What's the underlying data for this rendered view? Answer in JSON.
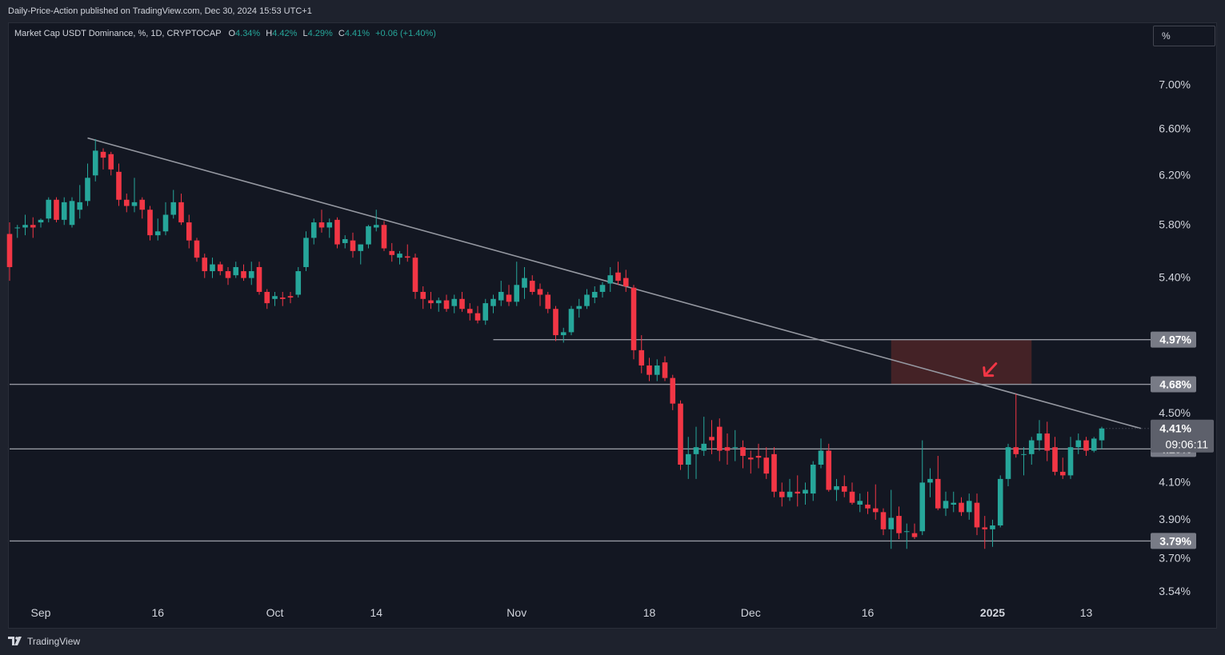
{
  "header": {
    "publisher": "Daily-Price-Action published on TradingView.com, Dec 30, 2024 15:53 UTC+1"
  },
  "legend": {
    "symbol": "Market Cap USDT Dominance, %, 1D, CRYPTOCAP",
    "o_label": "O",
    "o_value": "4.34%",
    "h_label": "H",
    "h_value": "4.42%",
    "l_label": "L",
    "l_value": "4.29%",
    "c_label": "C",
    "c_value": "4.41%",
    "change": "+0.06 (+1.40%)"
  },
  "scale_button": "%",
  "footer": {
    "brand": "TradingView",
    "logo_icon": "tradingview-logo-icon"
  },
  "colors": {
    "background": "#131722",
    "up": "#26a69a",
    "down": "#f23645",
    "trendline": "#9598a1",
    "level": "#9598a1",
    "zone": "#4a2327",
    "arrow": "#f23645",
    "label_bg": "#787b86",
    "price_label_bg": "#5d606b"
  },
  "chart_data": {
    "type": "candlestick",
    "title": "Market Cap USDT Dominance, %, 1D, CRYPTOCAP",
    "x_ticks": [
      "Sep",
      "16",
      "Oct",
      "14",
      "Nov",
      "18",
      "Dec",
      "16",
      "2025",
      "13"
    ],
    "x_ticks_bold": [
      "2025"
    ],
    "y_ticks": [
      "7.00%",
      "6.60%",
      "6.20%",
      "5.80%",
      "5.40%",
      "4.50%",
      "4.10%",
      "3.90%",
      "3.70%",
      "3.54%"
    ],
    "y_tick_values": [
      7.0,
      6.6,
      6.2,
      5.8,
      5.4,
      4.5,
      4.1,
      3.9,
      3.7,
      3.54
    ],
    "yscale": "log",
    "ylim": [
      3.49,
      7.4
    ],
    "grid": false,
    "start_date": "2024-08-28",
    "candles": [
      [
        5.73,
        5.82,
        5.38,
        5.48
      ],
      [
        5.78,
        5.8,
        5.7,
        5.78
      ],
      [
        5.78,
        5.88,
        5.72,
        5.8
      ],
      [
        5.8,
        5.86,
        5.7,
        5.78
      ],
      [
        5.82,
        5.85,
        5.78,
        5.84
      ],
      [
        5.85,
        6.02,
        5.82,
        6.0
      ],
      [
        6.0,
        6.02,
        5.82,
        5.84
      ],
      [
        5.84,
        6.02,
        5.8,
        5.98
      ],
      [
        5.8,
        6.02,
        5.78,
        5.99
      ],
      [
        5.92,
        6.12,
        5.85,
        5.98
      ],
      [
        5.99,
        6.3,
        5.95,
        6.18
      ],
      [
        6.2,
        6.51,
        6.15,
        6.41
      ],
      [
        6.4,
        6.43,
        6.25,
        6.35
      ],
      [
        6.38,
        6.4,
        6.2,
        6.25
      ],
      [
        6.23,
        6.3,
        5.95,
        6.0
      ],
      [
        6.0,
        6.05,
        5.9,
        5.95
      ],
      [
        5.95,
        6.18,
        5.9,
        5.98
      ],
      [
        6.0,
        6.02,
        5.85,
        5.92
      ],
      [
        5.92,
        5.95,
        5.68,
        5.72
      ],
      [
        5.72,
        5.85,
        5.68,
        5.75
      ],
      [
        5.75,
        5.98,
        5.72,
        5.88
      ],
      [
        5.88,
        6.08,
        5.85,
        5.98
      ],
      [
        5.98,
        6.05,
        5.8,
        5.82
      ],
      [
        5.82,
        5.88,
        5.62,
        5.68
      ],
      [
        5.68,
        5.7,
        5.52,
        5.55
      ],
      [
        5.55,
        5.58,
        5.4,
        5.45
      ],
      [
        5.45,
        5.55,
        5.4,
        5.5
      ],
      [
        5.5,
        5.52,
        5.42,
        5.45
      ],
      [
        5.45,
        5.48,
        5.35,
        5.4
      ],
      [
        5.42,
        5.52,
        5.4,
        5.48
      ],
      [
        5.45,
        5.5,
        5.38,
        5.4
      ],
      [
        5.4,
        5.52,
        5.35,
        5.45
      ],
      [
        5.48,
        5.52,
        5.28,
        5.3
      ],
      [
        5.3,
        5.32,
        5.18,
        5.22
      ],
      [
        5.25,
        5.3,
        5.2,
        5.27
      ],
      [
        5.26,
        5.3,
        5.2,
        5.25
      ],
      [
        5.27,
        5.3,
        5.22,
        5.26
      ],
      [
        5.28,
        5.48,
        5.26,
        5.45
      ],
      [
        5.48,
        5.75,
        5.45,
        5.7
      ],
      [
        5.7,
        5.85,
        5.65,
        5.82
      ],
      [
        5.82,
        5.92,
        5.74,
        5.78
      ],
      [
        5.78,
        5.85,
        5.7,
        5.82
      ],
      [
        5.84,
        5.86,
        5.62,
        5.65
      ],
      [
        5.66,
        5.72,
        5.62,
        5.69
      ],
      [
        5.68,
        5.74,
        5.55,
        5.6
      ],
      [
        5.6,
        5.65,
        5.5,
        5.65
      ],
      [
        5.65,
        5.8,
        5.62,
        5.79
      ],
      [
        5.78,
        5.92,
        5.75,
        5.8
      ],
      [
        5.8,
        5.83,
        5.6,
        5.62
      ],
      [
        5.6,
        5.66,
        5.52,
        5.57
      ],
      [
        5.55,
        5.6,
        5.5,
        5.58
      ],
      [
        5.56,
        5.65,
        5.52,
        5.55
      ],
      [
        5.55,
        5.58,
        5.25,
        5.3
      ],
      [
        5.3,
        5.34,
        5.18,
        5.25
      ],
      [
        5.24,
        5.3,
        5.18,
        5.22
      ],
      [
        5.22,
        5.26,
        5.16,
        5.24
      ],
      [
        5.24,
        5.28,
        5.16,
        5.18
      ],
      [
        5.2,
        5.28,
        5.15,
        5.25
      ],
      [
        5.25,
        5.3,
        5.16,
        5.18
      ],
      [
        5.18,
        5.22,
        5.1,
        5.15
      ],
      [
        5.15,
        5.2,
        5.08,
        5.1
      ],
      [
        5.1,
        5.25,
        5.07,
        5.22
      ],
      [
        5.2,
        5.28,
        5.15,
        5.25
      ],
      [
        5.24,
        5.38,
        5.2,
        5.3
      ],
      [
        5.28,
        5.35,
        5.2,
        5.23
      ],
      [
        5.23,
        5.52,
        5.2,
        5.35
      ],
      [
        5.33,
        5.48,
        5.25,
        5.4
      ],
      [
        5.38,
        5.42,
        5.28,
        5.3
      ],
      [
        5.32,
        5.36,
        5.2,
        5.28
      ],
      [
        5.28,
        5.3,
        5.15,
        5.18
      ],
      [
        5.18,
        5.2,
        4.96,
        5.0
      ],
      [
        5.0,
        5.05,
        4.95,
        5.02
      ],
      [
        5.02,
        5.2,
        5.0,
        5.18
      ],
      [
        5.18,
        5.25,
        5.12,
        5.2
      ],
      [
        5.2,
        5.32,
        5.18,
        5.28
      ],
      [
        5.26,
        5.34,
        5.22,
        5.3
      ],
      [
        5.3,
        5.37,
        5.26,
        5.35
      ],
      [
        5.36,
        5.48,
        5.3,
        5.42
      ],
      [
        5.44,
        5.52,
        5.35,
        5.38
      ],
      [
        5.4,
        5.46,
        5.3,
        5.34
      ],
      [
        5.33,
        5.35,
        4.84,
        4.9
      ],
      [
        4.9,
        5.0,
        4.75,
        4.8
      ],
      [
        4.8,
        4.85,
        4.7,
        4.74
      ],
      [
        4.74,
        4.84,
        4.7,
        4.8
      ],
      [
        4.82,
        4.86,
        4.7,
        4.72
      ],
      [
        4.72,
        4.74,
        4.52,
        4.56
      ],
      [
        4.56,
        4.58,
        4.17,
        4.2
      ],
      [
        4.2,
        4.36,
        4.12,
        4.26
      ],
      [
        4.26,
        4.42,
        4.12,
        4.3
      ],
      [
        4.28,
        4.48,
        4.25,
        4.32
      ],
      [
        4.36,
        4.46,
        4.26,
        4.34
      ],
      [
        4.42,
        4.47,
        4.22,
        4.28
      ],
      [
        4.3,
        4.38,
        4.2,
        4.28
      ],
      [
        4.3,
        4.4,
        4.22,
        4.3
      ],
      [
        4.3,
        4.34,
        4.18,
        4.25
      ],
      [
        4.24,
        4.28,
        4.15,
        4.23
      ],
      [
        4.25,
        4.32,
        4.18,
        4.24
      ],
      [
        4.24,
        4.3,
        4.12,
        4.15
      ],
      [
        4.26,
        4.3,
        4.02,
        4.05
      ],
      [
        4.05,
        4.1,
        3.97,
        4.02
      ],
      [
        4.02,
        4.12,
        4.0,
        4.05
      ],
      [
        4.05,
        4.14,
        3.97,
        4.04
      ],
      [
        4.04,
        4.1,
        3.98,
        4.06
      ],
      [
        4.04,
        4.22,
        4.0,
        4.2
      ],
      [
        4.2,
        4.35,
        4.18,
        4.28
      ],
      [
        4.28,
        4.32,
        4.05,
        4.06
      ],
      [
        4.06,
        4.12,
        4.0,
        4.08
      ],
      [
        4.08,
        4.14,
        4.02,
        4.05
      ],
      [
        4.05,
        4.1,
        3.98,
        3.99
      ],
      [
        3.98,
        4.04,
        3.94,
        4.0
      ],
      [
        3.98,
        4.05,
        3.93,
        3.96
      ],
      [
        3.96,
        4.09,
        3.9,
        3.94
      ],
      [
        3.94,
        3.96,
        3.82,
        3.85
      ],
      [
        3.85,
        4.06,
        3.75,
        3.91
      ],
      [
        3.92,
        3.97,
        3.8,
        3.83
      ],
      [
        3.84,
        3.88,
        3.75,
        3.84
      ],
      [
        3.83,
        3.88,
        3.8,
        3.81
      ],
      [
        3.84,
        4.34,
        3.82,
        4.1
      ],
      [
        4.1,
        4.18,
        4.02,
        4.12
      ],
      [
        4.12,
        4.25,
        3.95,
        3.96
      ],
      [
        3.96,
        4.05,
        3.92,
        4.0
      ],
      [
        3.98,
        4.05,
        3.94,
        3.99
      ],
      [
        3.99,
        4.02,
        3.92,
        3.94
      ],
      [
        3.94,
        4.04,
        3.9,
        4.0
      ],
      [
        3.99,
        4.04,
        3.82,
        3.86
      ],
      [
        3.86,
        3.92,
        3.75,
        3.85
      ],
      [
        3.85,
        3.9,
        3.76,
        3.87
      ],
      [
        3.87,
        4.14,
        3.86,
        4.12
      ],
      [
        4.12,
        4.32,
        4.08,
        4.3
      ],
      [
        4.3,
        4.62,
        4.24,
        4.26
      ],
      [
        4.26,
        4.3,
        4.14,
        4.26
      ],
      [
        4.26,
        4.36,
        4.2,
        4.34
      ],
      [
        4.34,
        4.46,
        4.28,
        4.38
      ],
      [
        4.38,
        4.45,
        4.22,
        4.28
      ],
      [
        4.3,
        4.36,
        4.14,
        4.16
      ],
      [
        4.16,
        4.24,
        4.12,
        4.14
      ],
      [
        4.14,
        4.36,
        4.12,
        4.3
      ],
      [
        4.3,
        4.38,
        4.26,
        4.34
      ],
      [
        4.34,
        4.36,
        4.25,
        4.28
      ],
      [
        4.28,
        4.36,
        4.27,
        4.35
      ],
      [
        4.34,
        4.42,
        4.29,
        4.41
      ]
    ],
    "trendline": {
      "start": [
        "2024-09-07",
        6.52
      ],
      "end": [
        "2025-01-20",
        4.41
      ]
    },
    "horizontal_levels": [
      {
        "value": 4.97,
        "label": "4.97%",
        "from": "2024-10-29"
      },
      {
        "value": 4.68,
        "label": "4.68%",
        "from": "2024-08-28"
      },
      {
        "value": 4.29,
        "label": "4.29%",
        "from": "2024-08-28"
      },
      {
        "value": 3.79,
        "label": "3.79%",
        "from": "2024-08-28"
      }
    ],
    "zone": {
      "from": "2024-12-19",
      "to": "2025-01-06",
      "low": 4.68,
      "high": 4.97
    },
    "arrow": {
      "date": "2024-12-31",
      "value": 4.72,
      "direction": "down-left"
    },
    "last_price": {
      "value": 4.41,
      "label": "4.41%",
      "countdown": "09:06:11"
    }
  }
}
